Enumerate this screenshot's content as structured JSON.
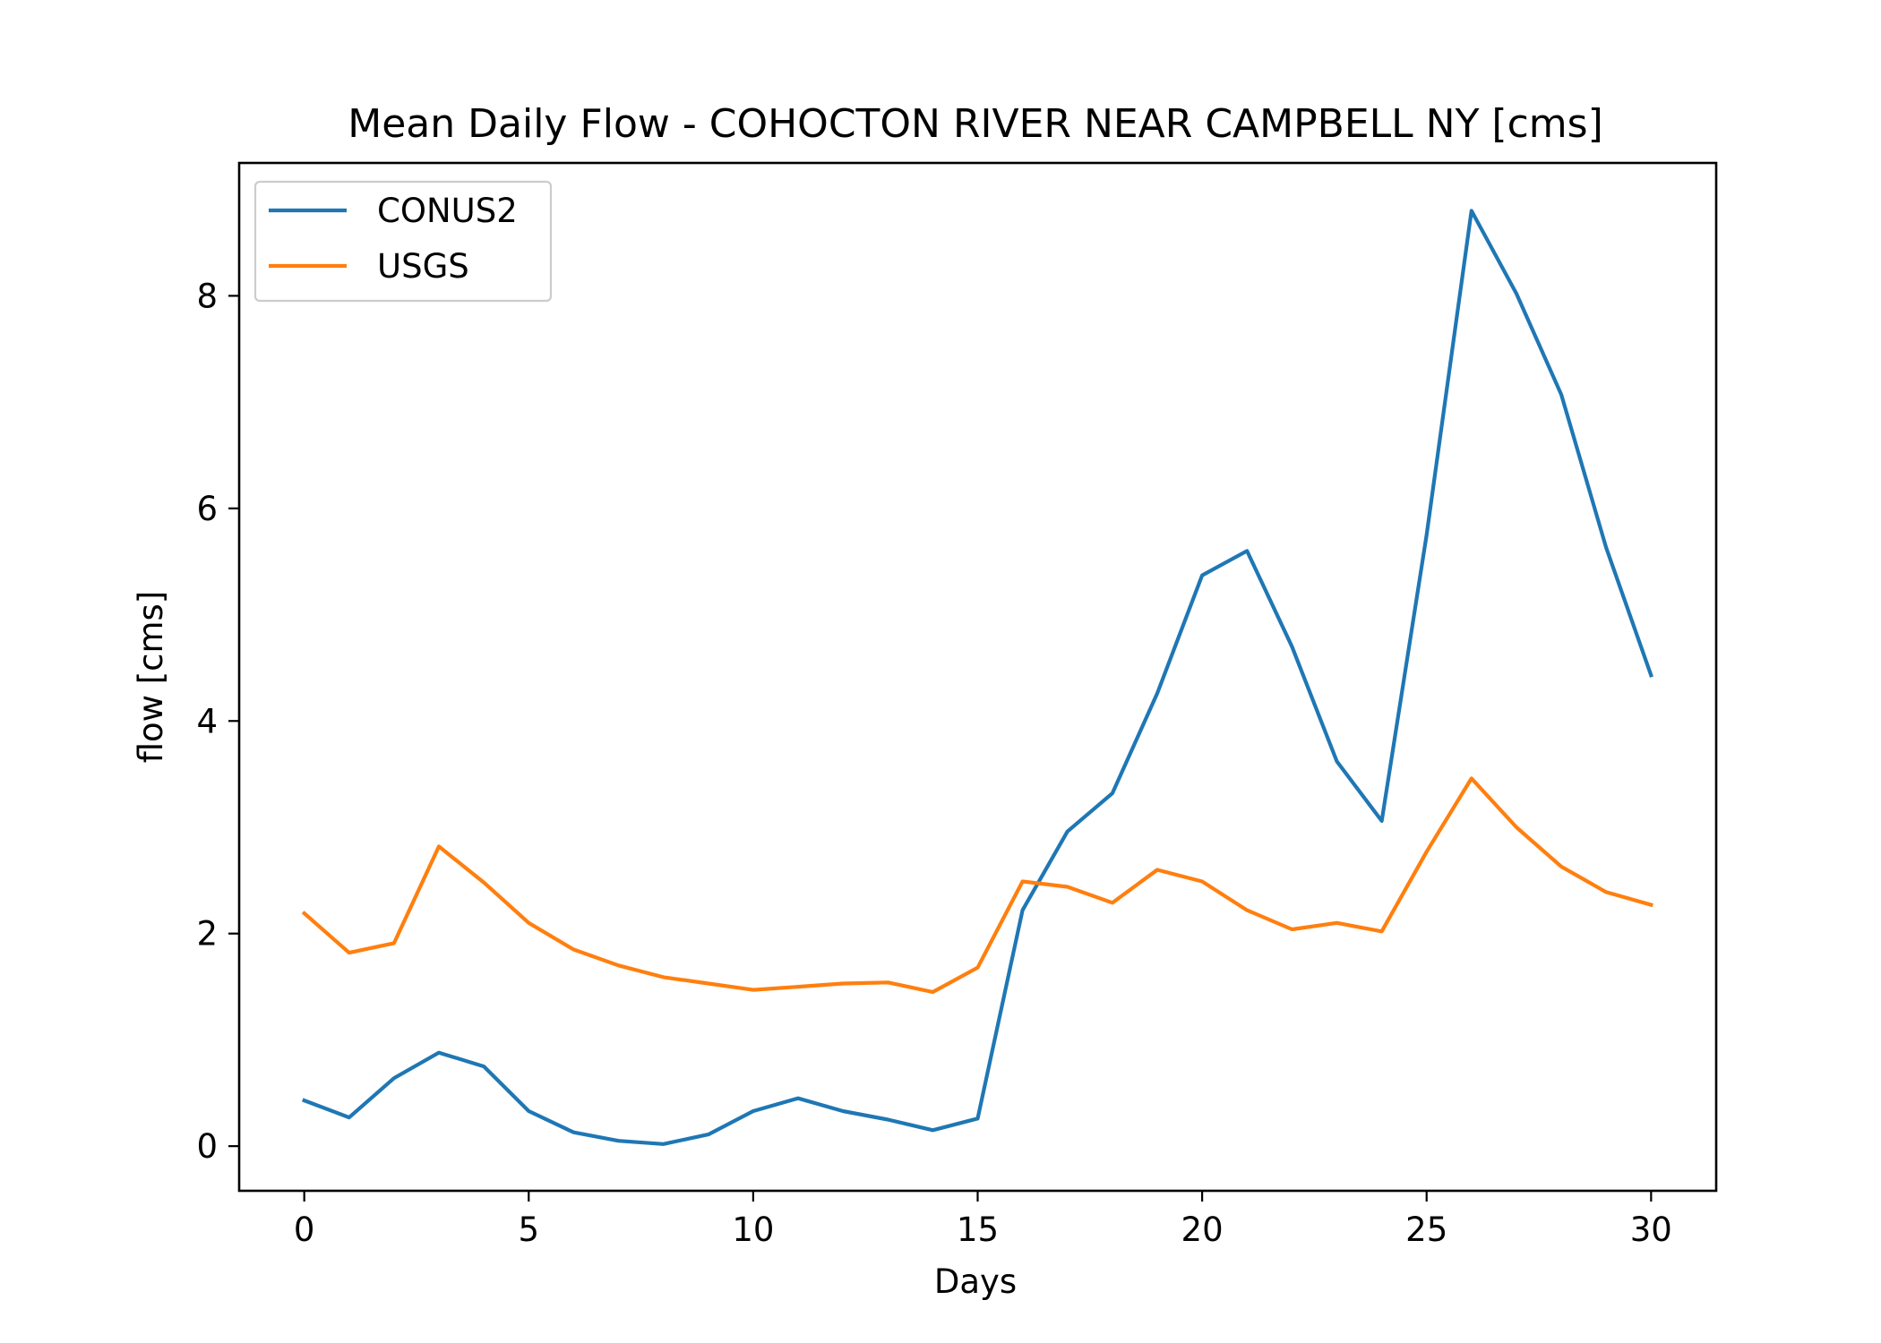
{
  "chart_data": {
    "type": "line",
    "title": "Mean Daily Flow - COHOCTON RIVER NEAR CAMPBELL NY [cms]",
    "xlabel": "Days",
    "ylabel": "flow [cms]",
    "xlim": [
      -1.45,
      31.45
    ],
    "ylim": [
      -0.42,
      9.25
    ],
    "xticks": [
      0,
      5,
      10,
      15,
      20,
      25,
      30
    ],
    "yticks": [
      0,
      2,
      4,
      6,
      8
    ],
    "grid": false,
    "legend_position": "top-left",
    "x": [
      0,
      1,
      2,
      3,
      4,
      5,
      6,
      7,
      8,
      9,
      10,
      11,
      12,
      13,
      14,
      15,
      16,
      17,
      18,
      19,
      20,
      21,
      22,
      23,
      24,
      25,
      26,
      27,
      28,
      29,
      30
    ],
    "series": [
      {
        "name": "CONUS2",
        "color": "#1f77b4",
        "values": [
          0.43,
          0.27,
          0.64,
          0.88,
          0.75,
          0.33,
          0.13,
          0.05,
          0.02,
          0.11,
          0.33,
          0.45,
          0.33,
          0.25,
          0.15,
          0.26,
          2.22,
          2.96,
          3.32,
          4.26,
          5.37,
          5.6,
          4.7,
          3.62,
          3.06,
          5.75,
          8.8,
          8.02,
          7.07,
          5.63,
          4.43
        ]
      },
      {
        "name": "USGS",
        "color": "#ff7f0e",
        "values": [
          2.19,
          1.82,
          1.91,
          2.82,
          2.48,
          2.1,
          1.85,
          1.7,
          1.59,
          1.53,
          1.47,
          1.5,
          1.53,
          1.54,
          1.45,
          1.68,
          2.49,
          2.44,
          2.29,
          2.6,
          2.49,
          2.22,
          2.04,
          2.1,
          2.02,
          2.77,
          3.46,
          3.0,
          2.63,
          2.39,
          2.27
        ]
      }
    ]
  }
}
